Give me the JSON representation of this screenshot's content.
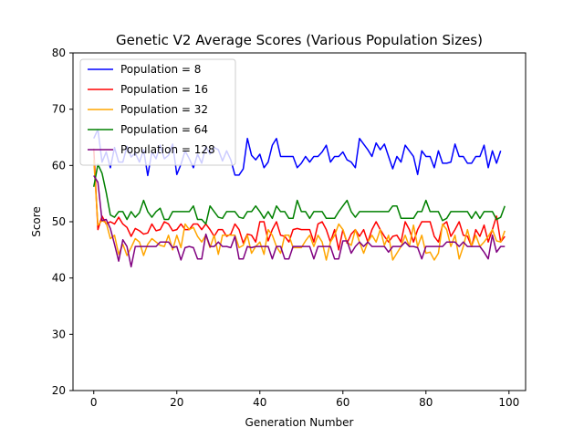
{
  "chart_data": {
    "type": "line",
    "title": "Genetic V2 Average Scores (Various Population Sizes)",
    "xlabel": "Generation Number",
    "ylabel": "Score",
    "xlim": [
      -5,
      104
    ],
    "ylim": [
      20,
      80
    ],
    "xticks": [
      0,
      20,
      40,
      60,
      80,
      100
    ],
    "yticks": [
      20,
      30,
      40,
      50,
      60,
      70,
      80
    ],
    "grid": false,
    "legend": "top-left",
    "series": [
      {
        "name": "Population = 8",
        "color": "#0000ff",
        "values": [
          64.8,
          66.4,
          60.6,
          62.4,
          59.6,
          63.2,
          60.6,
          60.6,
          63.4,
          61.5,
          62.2,
          60.6,
          62.8,
          58.2,
          62.4,
          61.2,
          63.6,
          61.2,
          61.8,
          63.8,
          58.4,
          60.2,
          62.6,
          61.2,
          59.6,
          62.0,
          60.4,
          63.4,
          62.0,
          63.2,
          62.8,
          60.8,
          62.6,
          61.0,
          58.3,
          58.3,
          59.4,
          64.8,
          61.8,
          61.0,
          62.0,
          59.6,
          60.6,
          63.6,
          64.8,
          61.6,
          61.6,
          61.6,
          61.6,
          59.6,
          60.4,
          61.6,
          60.6,
          61.6,
          61.6,
          62.4,
          63.6,
          60.6,
          61.6,
          61.6,
          62.4,
          61.0,
          60.6,
          59.6,
          64.8,
          63.8,
          62.8,
          61.6,
          64.0,
          62.8,
          63.8,
          61.6,
          59.4,
          61.6,
          60.6,
          63.6,
          62.6,
          61.6,
          58.4,
          62.6,
          61.6,
          61.6,
          59.6,
          62.6,
          60.4,
          60.4,
          60.6,
          63.8,
          61.6,
          61.6,
          60.4,
          60.4,
          61.6,
          61.6,
          63.6,
          59.6,
          62.6,
          60.4,
          62.6
        ]
      },
      {
        "name": "Population = 16",
        "color": "#ff0000",
        "values": [
          63.0,
          48.6,
          51.0,
          49.6,
          50.0,
          49.6,
          50.8,
          49.6,
          49.0,
          47.4,
          48.8,
          48.4,
          47.8,
          48.0,
          49.6,
          48.4,
          48.6,
          50.0,
          49.6,
          48.4,
          48.6,
          49.6,
          48.6,
          48.6,
          49.6,
          49.6,
          48.6,
          49.6,
          48.6,
          47.4,
          48.6,
          48.6,
          47.4,
          47.8,
          49.6,
          48.6,
          46.2,
          47.8,
          47.6,
          46.4,
          50.0,
          50.0,
          46.6,
          48.6,
          50.0,
          47.6,
          47.4,
          46.4,
          48.6,
          48.8,
          48.6,
          48.6,
          48.6,
          46.4,
          49.6,
          50.0,
          48.6,
          46.4,
          48.6,
          45.0,
          48.6,
          46.2,
          47.8,
          48.6,
          47.4,
          48.6,
          46.4,
          48.6,
          50.0,
          48.6,
          47.4,
          46.4,
          47.4,
          47.6,
          46.4,
          50.0,
          48.6,
          46.4,
          48.6,
          50.0,
          50.0,
          50.0,
          47.4,
          46.4,
          49.4,
          50.0,
          47.4,
          48.6,
          50.0,
          47.6,
          47.4,
          45.6,
          48.6,
          47.4,
          49.4,
          46.4,
          48.6,
          51.0,
          46.4,
          47.4
        ]
      },
      {
        "name": "Population = 32",
        "color": "#ffa500",
        "values": [
          61.0,
          49.4,
          50.2,
          49.8,
          47.0,
          47.6,
          44.2,
          46.0,
          44.0,
          45.4,
          47.0,
          46.4,
          44.0,
          46.0,
          47.0,
          46.4,
          45.8,
          45.6,
          47.6,
          45.0,
          47.6,
          45.4,
          49.6,
          48.6,
          49.0,
          47.4,
          46.4,
          47.6,
          45.4,
          47.6,
          44.2,
          47.6,
          47.6,
          47.6,
          47.6,
          45.4,
          45.8,
          47.6,
          44.4,
          45.6,
          46.4,
          44.2,
          48.6,
          47.6,
          45.6,
          44.4,
          47.6,
          47.6,
          45.4,
          45.4,
          45.4,
          46.6,
          47.6,
          45.6,
          47.6,
          46.4,
          43.2,
          46.4,
          47.6,
          49.6,
          48.6,
          46.4,
          45.8,
          48.6,
          46.4,
          44.4,
          46.4,
          47.6,
          46.4,
          48.6,
          45.8,
          47.6,
          43.2,
          44.4,
          45.6,
          47.6,
          45.6,
          49.4,
          45.6,
          47.6,
          44.4,
          44.6,
          43.2,
          44.4,
          49.6,
          48.6,
          45.6,
          47.6,
          43.4,
          45.6,
          48.6,
          45.6,
          47.6,
          45.6,
          46.4,
          47.4,
          48.6,
          46.6,
          46.4,
          48.4
        ]
      },
      {
        "name": "Population = 64",
        "color": "#008000",
        "values": [
          56.2,
          60.2,
          58.6,
          55.2,
          51.2,
          50.8,
          51.8,
          51.8,
          50.4,
          51.8,
          50.8,
          51.6,
          53.8,
          51.8,
          50.8,
          51.8,
          52.4,
          50.4,
          50.4,
          51.8,
          51.8,
          51.8,
          51.8,
          51.8,
          52.8,
          50.4,
          50.4,
          49.6,
          52.8,
          51.8,
          50.8,
          50.6,
          51.8,
          51.8,
          51.8,
          50.8,
          50.6,
          51.8,
          51.8,
          52.8,
          51.8,
          50.6,
          51.8,
          50.6,
          52.8,
          51.8,
          51.8,
          50.6,
          50.6,
          53.8,
          51.8,
          51.8,
          50.6,
          51.8,
          51.8,
          51.8,
          50.6,
          50.6,
          50.6,
          51.8,
          52.8,
          53.8,
          51.8,
          50.8,
          51.8,
          51.8,
          51.8,
          51.8,
          51.8,
          51.8,
          51.8,
          51.8,
          52.8,
          52.8,
          50.6,
          50.6,
          50.6,
          50.6,
          51.8,
          51.8,
          53.8,
          51.8,
          51.8,
          51.8,
          50.2,
          50.6,
          51.8,
          51.8,
          51.8,
          51.8,
          51.8,
          50.6,
          51.8,
          50.6,
          51.8,
          51.8,
          51.8,
          50.4,
          50.8,
          52.8
        ]
      },
      {
        "name": "Population = 128",
        "color": "#800080",
        "values": [
          58.2,
          57.0,
          50.2,
          50.4,
          48.8,
          46.0,
          43.0,
          46.8,
          45.6,
          42.0,
          45.6,
          45.6,
          45.6,
          45.6,
          45.6,
          45.6,
          46.4,
          46.4,
          46.4,
          45.4,
          45.6,
          43.2,
          45.4,
          45.6,
          45.4,
          43.4,
          43.4,
          47.8,
          45.6,
          45.6,
          46.4,
          45.6,
          45.6,
          45.4,
          47.4,
          43.4,
          43.4,
          45.6,
          45.4,
          45.6,
          45.6,
          45.6,
          45.6,
          43.4,
          45.6,
          45.6,
          43.4,
          43.4,
          45.6,
          45.6,
          45.6,
          45.6,
          45.6,
          43.4,
          45.6,
          45.6,
          45.6,
          45.6,
          43.4,
          43.4,
          46.6,
          46.6,
          44.4,
          45.6,
          46.4,
          45.6,
          46.4,
          45.6,
          45.6,
          45.6,
          45.6,
          44.6,
          45.6,
          45.6,
          45.6,
          46.4,
          45.6,
          45.6,
          45.4,
          43.4,
          45.6,
          45.6,
          45.6,
          45.6,
          45.6,
          46.4,
          46.4,
          46.4,
          45.6,
          46.4,
          45.6,
          45.6,
          45.6,
          45.6,
          44.6,
          43.4,
          47.6,
          44.6,
          45.6,
          45.6
        ]
      }
    ]
  }
}
